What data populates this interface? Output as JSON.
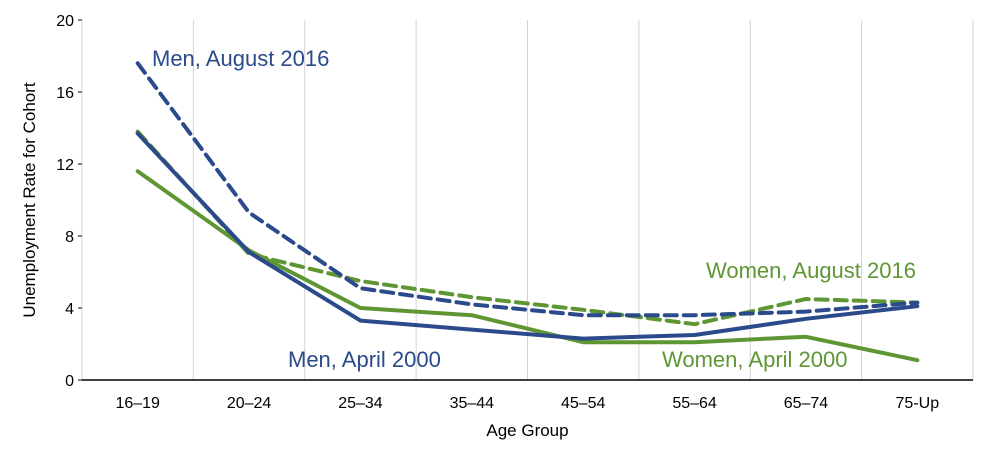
{
  "chart_data": {
    "type": "line",
    "title": "",
    "xlabel": "Age Group",
    "ylabel": "Unemployment Rate for Cohort",
    "ylim": [
      0,
      20
    ],
    "yticks": [
      0,
      4,
      8,
      12,
      16,
      20
    ],
    "ytick_labels": [
      "0",
      "4",
      "8",
      "12",
      "16",
      "20"
    ],
    "grid": "vertical",
    "categories": [
      "16–19",
      "20–24",
      "25–34",
      "35–44",
      "45–54",
      "55–64",
      "65–74",
      "75-Up"
    ],
    "series": [
      {
        "name": "Men, August 2016",
        "color": "#2b4a8b",
        "dash": "dashed",
        "values": [
          17.6,
          9.3,
          5.1,
          4.2,
          3.6,
          3.6,
          3.8,
          4.3
        ]
      },
      {
        "name": "Men, April 2000",
        "color": "#2b4a8b",
        "dash": "solid",
        "values": [
          13.7,
          7.1,
          3.3,
          2.8,
          2.3,
          2.5,
          3.4,
          4.1
        ]
      },
      {
        "name": "Women, August 2016",
        "color": "#5f9634",
        "dash": "dashed",
        "values": [
          13.8,
          7.0,
          5.5,
          4.6,
          3.9,
          3.1,
          4.5,
          4.3
        ]
      },
      {
        "name": "Women, April 2000",
        "color": "#5f9634",
        "dash": "solid",
        "values": [
          11.6,
          7.2,
          4.0,
          3.6,
          2.1,
          2.1,
          2.4,
          1.1
        ]
      }
    ]
  }
}
